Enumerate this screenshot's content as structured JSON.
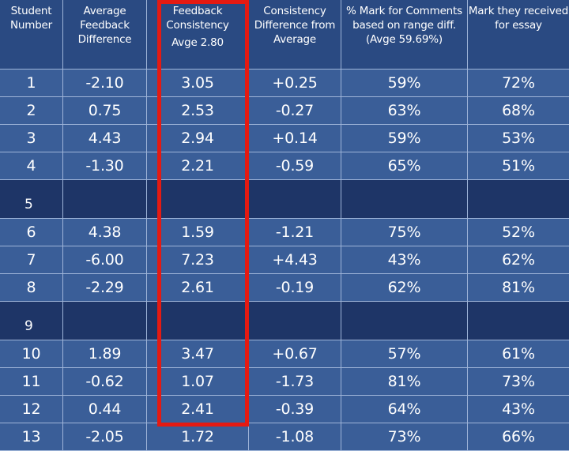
{
  "columns": [
    "Student Number",
    "Average Feedback Difference",
    "Feedback Consistency",
    "Consistency Difference from Average",
    "% Mark for Comments based on range diff. (Avge 59.69%)",
    "Mark they received for essay"
  ],
  "feedback_consistency_avg": "Avge 2.80",
  "rows": [
    {
      "student": "1",
      "avg_diff": "-2.10",
      "consistency": "3.05",
      "cons_diff": "+0.25",
      "pct_mark": "59%",
      "essay": "72%"
    },
    {
      "student": "2",
      "avg_diff": "0.75",
      "consistency": "2.53",
      "cons_diff": "-0.27",
      "pct_mark": "63%",
      "essay": "68%"
    },
    {
      "student": "3",
      "avg_diff": "4.43",
      "consistency": "2.94",
      "cons_diff": "+0.14",
      "pct_mark": "59%",
      "essay": "53%"
    },
    {
      "student": "4",
      "avg_diff": "-1.30",
      "consistency": "2.21",
      "cons_diff": "-0.59",
      "pct_mark": "65%",
      "essay": "51%"
    },
    {
      "student": "5",
      "avg_diff": "",
      "consistency": "",
      "cons_diff": "",
      "pct_mark": "",
      "essay": ""
    },
    {
      "student": "6",
      "avg_diff": "4.38",
      "consistency": "1.59",
      "cons_diff": "-1.21",
      "pct_mark": "75%",
      "essay": "52%"
    },
    {
      "student": "7",
      "avg_diff": "-6.00",
      "consistency": "7.23",
      "cons_diff": "+4.43",
      "pct_mark": "43%",
      "essay": "62%"
    },
    {
      "student": "8",
      "avg_diff": "-2.29",
      "consistency": "2.61",
      "cons_diff": "-0.19",
      "pct_mark": "62%",
      "essay": "81%"
    },
    {
      "student": "9",
      "avg_diff": "",
      "consistency": "",
      "cons_diff": "",
      "pct_mark": "",
      "essay": ""
    },
    {
      "student": "10",
      "avg_diff": "1.89",
      "consistency": "3.47",
      "cons_diff": "+0.67",
      "pct_mark": "57%",
      "essay": "61%"
    },
    {
      "student": "11",
      "avg_diff": "-0.62",
      "consistency": "1.07",
      "cons_diff": "-1.73",
      "pct_mark": "81%",
      "essay": "73%"
    },
    {
      "student": "12",
      "avg_diff": "0.44",
      "consistency": "2.41",
      "cons_diff": "-0.39",
      "pct_mark": "64%",
      "essay": "43%"
    },
    {
      "student": "13",
      "avg_diff": "-2.05",
      "consistency": "1.72",
      "cons_diff": "-1.08",
      "pct_mark": "73%",
      "essay": "66%"
    }
  ],
  "colors": {
    "background": "#1e3567",
    "header_cell": "#2a4a82",
    "data_cell": "#3a5e98",
    "highlight": "#e41a12",
    "text": "#ffffff"
  }
}
